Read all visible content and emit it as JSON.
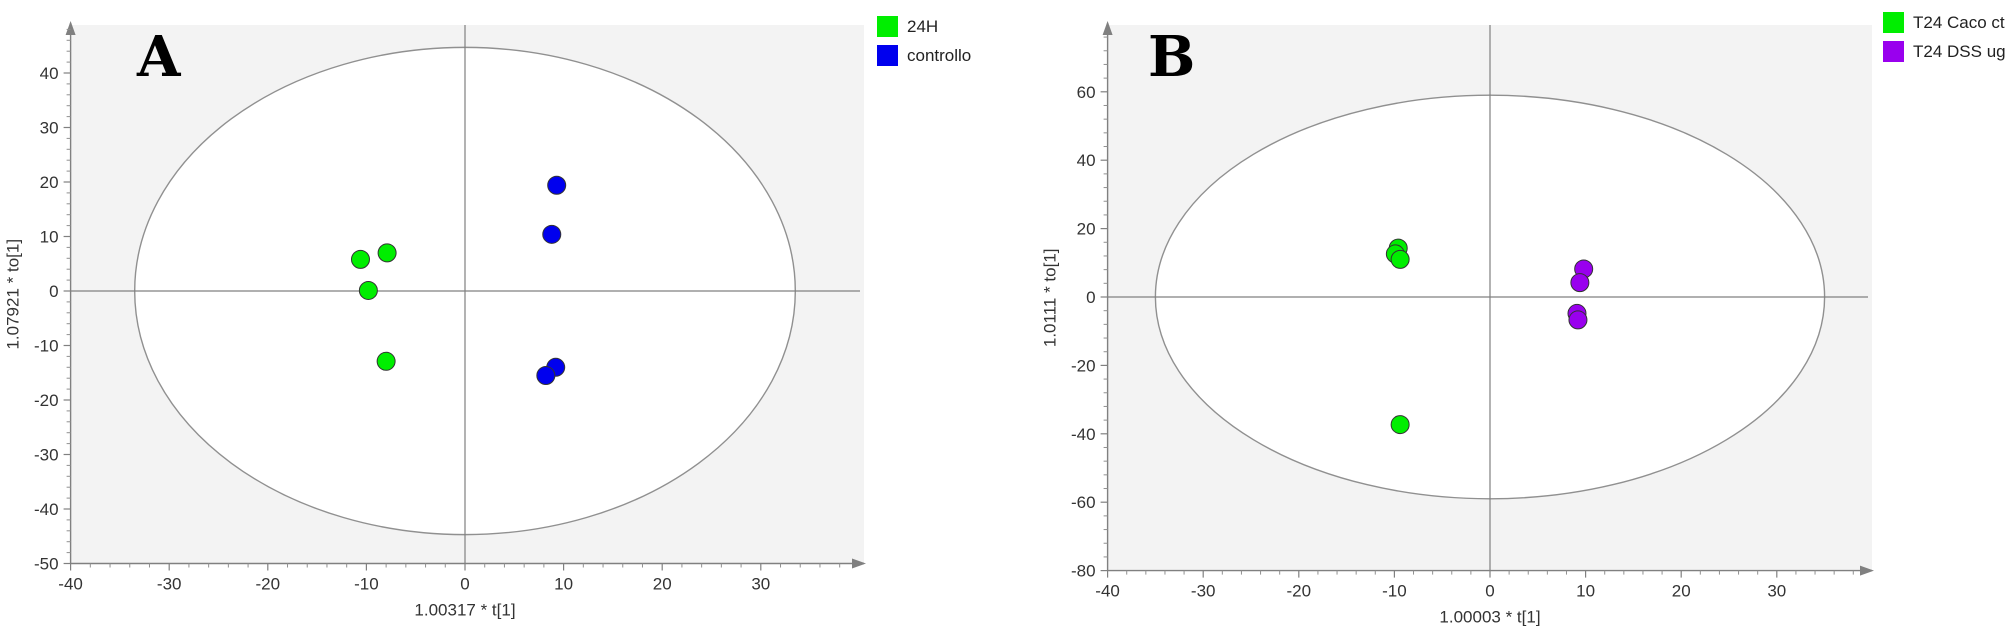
{
  "chart_data": [
    {
      "type": "scatter",
      "panel_label": "A",
      "title": "",
      "xlabel": "1.00317 * t[1]",
      "ylabel": "1.07921 * to[1]",
      "xlim": [
        -40,
        40
      ],
      "ylim": [
        -50,
        50
      ],
      "xticks": [
        -40,
        -30,
        -20,
        -10,
        0,
        10,
        20,
        30
      ],
      "yticks": [
        -50,
        -40,
        -30,
        -20,
        -10,
        0,
        10,
        20,
        30,
        40
      ],
      "ellipse": {
        "cx": 0,
        "cy": 0,
        "rx": 33.5,
        "ry": 44.7
      },
      "legend_position": "top-right outside",
      "series": [
        {
          "name": "24H",
          "color": "#00ee00",
          "points": [
            [
              -10.6,
              5.8
            ],
            [
              -7.9,
              7.0
            ],
            [
              -9.8,
              0.1
            ],
            [
              -8.0,
              -12.9
            ]
          ]
        },
        {
          "name": "controllo",
          "color": "#0000ee",
          "points": [
            [
              9.3,
              19.4
            ],
            [
              8.8,
              10.4
            ],
            [
              9.2,
              -14.0
            ],
            [
              8.2,
              -15.5
            ]
          ]
        }
      ]
    },
    {
      "type": "scatter",
      "panel_label": "B",
      "title": "",
      "xlabel": "1.00003 * t[1]",
      "ylabel": "1.0111 * to[1]",
      "xlim": [
        -40,
        40
      ],
      "ylim": [
        -80,
        80
      ],
      "xticks": [
        -40,
        -30,
        -20,
        -10,
        0,
        10,
        20,
        30
      ],
      "yticks": [
        -80,
        -60,
        -40,
        -20,
        0,
        20,
        40,
        60
      ],
      "ellipse": {
        "cx": 0,
        "cy": 0,
        "rx": 35.0,
        "ry": 59.0
      },
      "legend_position": "top-right outside",
      "series": [
        {
          "name": "T24 Caco ct",
          "color": "#00ee00",
          "points": [
            [
              -9.6,
              14.3
            ],
            [
              -9.9,
              12.6
            ],
            [
              -9.4,
              11.0
            ],
            [
              -9.4,
              -37.3
            ]
          ]
        },
        {
          "name": "T24 DSS ug",
          "color": "#9900ee",
          "points": [
            [
              9.8,
              8.2
            ],
            [
              9.4,
              4.2
            ],
            [
              9.1,
              -4.8
            ],
            [
              9.2,
              -6.7
            ]
          ]
        }
      ]
    }
  ]
}
